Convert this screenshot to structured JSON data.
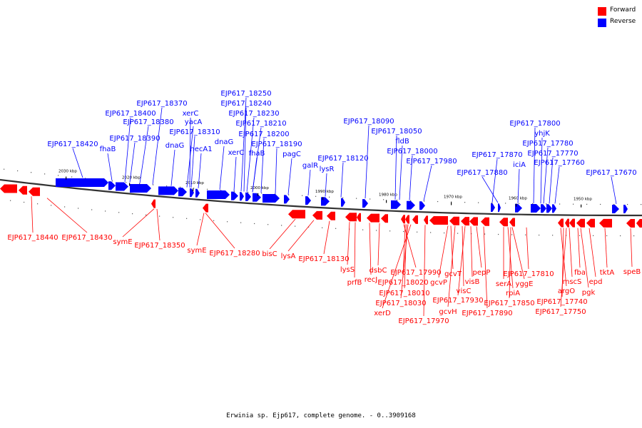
{
  "legend": {
    "forward_label": "Forward",
    "reverse_label": "Reverse",
    "forward_color": "#ff0000",
    "reverse_color": "#0000ff"
  },
  "caption": "Erwinia sp. Ejp617, complete genome. - 0..3909168",
  "colors": {
    "forward_fill": "#ff0000",
    "reverse_fill": "#0000ff",
    "backbone": "#888888"
  },
  "kbp_ticks": [
    "2030 kbp",
    "2020 kbp",
    "2010 kbp",
    "2000 kbp",
    "1990 kbp",
    "1980 kbp",
    "1970 kbp",
    "1960 kbp",
    "1950 kbp"
  ],
  "reverse_labels": [
    "EJP617_18420",
    "fhaB",
    "EJP617_18390",
    "EJP617_18380",
    "EJP617_18400",
    "EJP617_18370",
    "dnaG",
    "EJP617_18310",
    "yacA",
    "xerC",
    "hecA1",
    "dnaG",
    "xerC",
    "EJP617_18250",
    "EJP617_18240",
    "EJP617_18230",
    "EJP617_18210",
    "EJP617_18200",
    "fhaB",
    "EJP617_18190",
    "pagC",
    "galR",
    "lysR",
    "EJP617_18120",
    "EJP617_18090",
    "EJP617_18050",
    "fldB",
    "EJP617_18000",
    "EJP617_17980",
    "EJP617_17870",
    "EJP617_17880",
    "iciA",
    "EJP617_17800",
    "yhjK",
    "EJP617_17780",
    "EJP617_17770",
    "EJP617_17760",
    "EJP617_17670"
  ],
  "forward_labels": [
    "EJP617_18440",
    "EJP617_18430",
    "symE",
    "EJP617_18350",
    "symE",
    "EJP617_18280",
    "bisC",
    "lysA",
    "EJP617_18130",
    "lysS",
    "prfB",
    "recJ",
    "dsbC",
    "EJP617_17990",
    "EJP617_18020",
    "EJP617_18010",
    "EJP617_18030",
    "xerD",
    "EJP617_17970",
    "gcvP",
    "gcvT",
    "gcvH",
    "visC",
    "EJP617_17930",
    "visB",
    "pepP",
    "EJP617_17890",
    "serA",
    "rpiA",
    "EJP617_17850",
    "yggE",
    "EJP617_17810",
    "argO",
    "EJP617_17740",
    "EJP617_17750",
    "mscS",
    "fba",
    "pgk",
    "epd",
    "tktA",
    "speB"
  ]
}
